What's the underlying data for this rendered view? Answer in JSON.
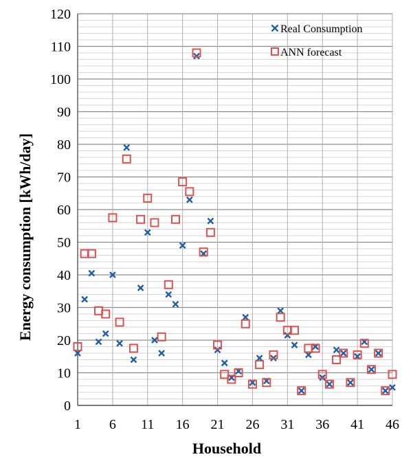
{
  "chart_data": {
    "type": "scatter",
    "title": "",
    "xlabel": "Household",
    "ylabel": "Energy consumption  [kWh/day]",
    "xlim": [
      1,
      46
    ],
    "ylim": [
      0,
      120
    ],
    "xticks": [
      "1",
      "6",
      "11",
      "16",
      "21",
      "26",
      "31",
      "36",
      "41",
      "46"
    ],
    "yticks": [
      "0",
      "10",
      "20",
      "30",
      "40",
      "50",
      "60",
      "70",
      "80",
      "90",
      "100",
      "110",
      "120"
    ],
    "grid": true,
    "legend_position": "top-right",
    "series": [
      {
        "name": "Real Consumption",
        "marker": "x",
        "color": "#1f5fa8",
        "x": [
          1,
          2,
          3,
          4,
          5,
          6,
          7,
          8,
          9,
          10,
          11,
          12,
          13,
          14,
          15,
          16,
          17,
          18,
          19,
          20,
          21,
          22,
          23,
          24,
          25,
          26,
          27,
          28,
          29,
          30,
          31,
          32,
          33,
          34,
          35,
          36,
          37,
          38,
          39,
          40,
          41,
          42,
          43,
          44,
          45,
          46
        ],
        "y": [
          16,
          32.5,
          40.5,
          19.5,
          22,
          40,
          19,
          79,
          14,
          36,
          53,
          20,
          16,
          34,
          31,
          49,
          63,
          107,
          46.5,
          56.5,
          17,
          13,
          8.5,
          10.5,
          27,
          7,
          14.5,
          7.5,
          14.5,
          29,
          21.5,
          18.5,
          4.5,
          15.5,
          18,
          8.5,
          6.5,
          17,
          16,
          7,
          15,
          19.5,
          11,
          16,
          4.5,
          5.5
        ]
      },
      {
        "name": "ANN forecast",
        "marker": "square",
        "color": "#d9534f",
        "x": [
          1,
          2,
          3,
          4,
          5,
          6,
          7,
          8,
          9,
          10,
          11,
          12,
          13,
          14,
          15,
          16,
          17,
          18,
          19,
          20,
          21,
          22,
          23,
          24,
          25,
          26,
          27,
          28,
          29,
          30,
          31,
          32,
          33,
          34,
          35,
          36,
          37,
          38,
          39,
          40,
          41,
          42,
          43,
          44,
          45,
          46
        ],
        "y": [
          18,
          46.5,
          46.5,
          29,
          28,
          57.5,
          25.5,
          75.5,
          17.5,
          57,
          63.5,
          56,
          21,
          37,
          57,
          68.5,
          65.5,
          108,
          47,
          53,
          18.5,
          9.5,
          8,
          10,
          25,
          6.5,
          12.5,
          7,
          15.5,
          27,
          23,
          23,
          4.5,
          17.5,
          17.5,
          9.5,
          6.5,
          14,
          16,
          7,
          15.5,
          19,
          11,
          16,
          4.5,
          9.5
        ]
      }
    ]
  }
}
